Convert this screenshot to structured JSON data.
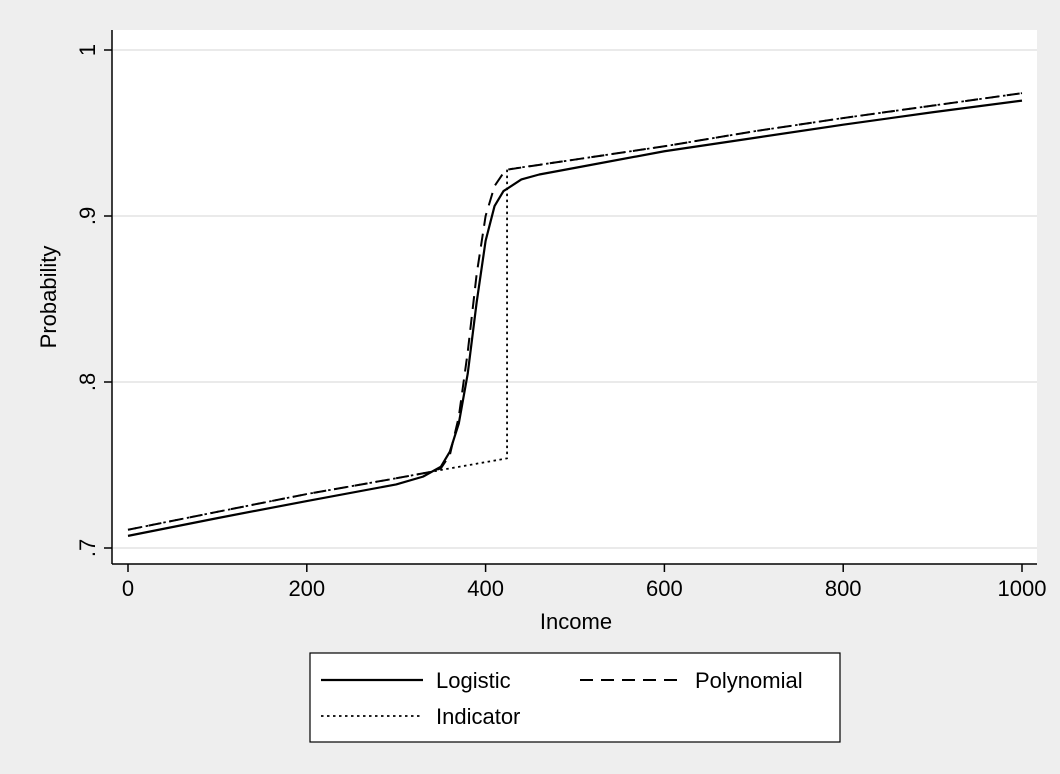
{
  "chart_data": {
    "type": "line",
    "title": "",
    "xlabel": "Income",
    "ylabel": "Probability",
    "xlim": [
      0,
      1000
    ],
    "ylim": [
      0.7,
      1.0
    ],
    "x_ticks": [
      0,
      200,
      400,
      600,
      800,
      1000
    ],
    "x_tick_labels": [
      "0",
      "200",
      "400",
      "600",
      "800",
      "1000"
    ],
    "y_ticks": [
      0.7,
      0.8,
      0.9,
      1.0
    ],
    "y_tick_labels": [
      ".7",
      ".8",
      ".9",
      "1"
    ],
    "grid": "horizontal",
    "legend_position": "bottom",
    "series": [
      {
        "name": "Logistic",
        "style": "solid",
        "x": [
          0,
          100,
          200,
          300,
          330,
          350,
          360,
          370,
          380,
          390,
          400,
          410,
          420,
          440,
          460,
          500,
          600,
          700,
          800,
          900,
          1000
        ],
        "y": [
          0.7073,
          0.718,
          0.7283,
          0.7383,
          0.743,
          0.749,
          0.758,
          0.775,
          0.805,
          0.848,
          0.885,
          0.906,
          0.915,
          0.922,
          0.925,
          0.929,
          0.939,
          0.947,
          0.955,
          0.9625,
          0.9695
        ]
      },
      {
        "name": "Polynomial",
        "style": "dashed",
        "x": [
          0,
          100,
          200,
          300,
          340,
          350,
          360,
          370,
          380,
          390,
          400,
          410,
          420,
          425,
          500,
          600,
          700,
          800,
          900,
          1000
        ],
        "y": [
          0.711,
          0.7218,
          0.7325,
          0.742,
          0.746,
          0.748,
          0.756,
          0.779,
          0.818,
          0.865,
          0.9,
          0.918,
          0.926,
          0.928,
          0.934,
          0.942,
          0.951,
          0.959,
          0.9665,
          0.974
        ]
      },
      {
        "name": "Indicator",
        "style": "dotted",
        "x": [
          0,
          100,
          200,
          300,
          350,
          424,
          424,
          500,
          600,
          700,
          800,
          900,
          1000
        ],
        "y": [
          0.711,
          0.7218,
          0.7325,
          0.742,
          0.747,
          0.754,
          0.928,
          0.934,
          0.942,
          0.951,
          0.959,
          0.9665,
          0.974
        ]
      }
    ]
  }
}
